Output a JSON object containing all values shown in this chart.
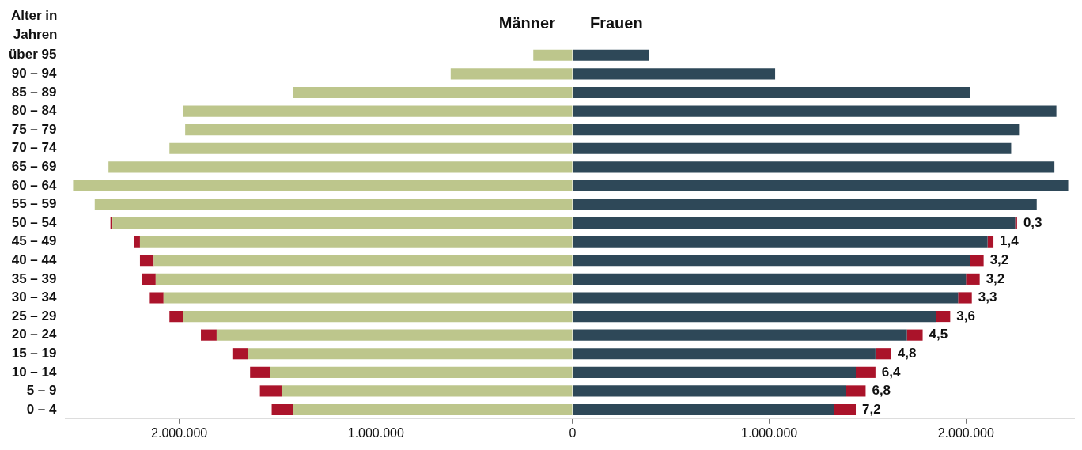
{
  "chart_data": {
    "type": "bar",
    "orientation": "horizontal",
    "stacked": true,
    "ylabel": "Alter in Jahren",
    "categories": [
      "über 95",
      "90 – 94",
      "85 – 89",
      "80 – 84",
      "75 – 79",
      "70 – 74",
      "65 – 69",
      "60 – 64",
      "55 – 59",
      "50 – 54",
      "45 – 49",
      "40 – 44",
      "35 – 39",
      "30 – 34",
      "25 – 29",
      "20 – 24",
      "15 – 19",
      "10 – 14",
      "5 – 9",
      "0 – 4"
    ],
    "series": [
      {
        "name": "Männer",
        "color": "#bdc68c",
        "values": [
          -200000,
          -620000,
          -1420000,
          -1980000,
          -1970000,
          -2050000,
          -2360000,
          -2540000,
          -2430000,
          -2340000,
          -2200000,
          -2130000,
          -2120000,
          -2080000,
          -1980000,
          -1810000,
          -1650000,
          -1540000,
          -1480000,
          -1420000
        ]
      },
      {
        "color": "#ab142b",
        "values": [
          null,
          null,
          null,
          null,
          null,
          null,
          null,
          null,
          null,
          -10000,
          -30000,
          -70000,
          -70000,
          -70000,
          -70000,
          -80000,
          -80000,
          -100000,
          -110000,
          -110000
        ]
      },
      {
        "name": "Frauen",
        "color": "#2e4858",
        "values": [
          390000,
          1030000,
          2020000,
          2460000,
          2270000,
          2230000,
          2450000,
          2520000,
          2360000,
          2250000,
          2110000,
          2020000,
          2000000,
          1960000,
          1850000,
          1700000,
          1540000,
          1440000,
          1390000,
          1330000
        ]
      },
      {
        "color": "#aa132a",
        "values": [
          null,
          null,
          null,
          null,
          null,
          null,
          null,
          null,
          null,
          10000,
          30000,
          70000,
          70000,
          70000,
          70000,
          80000,
          80000,
          100000,
          100000,
          110000
        ]
      }
    ],
    "annotations": [
      {
        "text": "0,3",
        "x": 2260000,
        "y": "50 – 54"
      },
      {
        "text": "1,4",
        "x": 2140000,
        "y": "45 – 49"
      },
      {
        "text": "3,2",
        "x": 2090000,
        "y": "40 – 44"
      },
      {
        "text": "3,2",
        "x": 2070000,
        "y": "35 – 39"
      },
      {
        "text": "3,3",
        "x": 2030000,
        "y": "30 – 34"
      },
      {
        "text": "3,6",
        "x": 1920000,
        "y": "25 – 29"
      },
      {
        "text": "4,5",
        "x": 1780000,
        "y": "20 – 24"
      },
      {
        "text": "4,8",
        "x": 1620000,
        "y": "15 – 19"
      },
      {
        "text": "6,4",
        "x": 1540000,
        "y": "10 – 14"
      },
      {
        "text": "6,8",
        "x": 1490000,
        "y": "5 – 9"
      },
      {
        "text": "7,2",
        "x": 1440000,
        "y": "0 – 4"
      }
    ],
    "xlim": [
      -2580000,
      2550000
    ],
    "xticks": [
      {
        "value": -2000000,
        "label": "2.000.000"
      },
      {
        "value": -1000000,
        "label": "1.000.000"
      },
      0,
      {
        "value": 1000000,
        "label": "1.000.000"
      },
      {
        "value": 2000000,
        "label": "2.000.000"
      }
    ],
    "legend": false
  }
}
